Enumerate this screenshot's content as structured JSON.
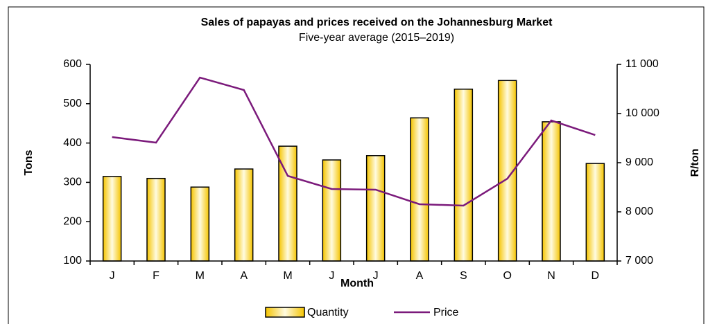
{
  "chart_data": {
    "type": "bar_line",
    "title": "Sales of papayas and prices received on the Johannesburg Market",
    "subtitle": "Five-year  average (2015–2019)",
    "x_label": "Month",
    "y_label": "Tons",
    "y2_label": "R/ton",
    "categories": [
      "J",
      "F",
      "M",
      "A",
      "M",
      "J",
      "J",
      "A",
      "S",
      "O",
      "N",
      "D"
    ],
    "series": [
      {
        "name": "Quantity",
        "type": "bar",
        "color": "#f5c400",
        "values": [
          315,
          310,
          288,
          334,
          392,
          357,
          368,
          464,
          537,
          559,
          454,
          348
        ]
      },
      {
        "name": "Price",
        "type": "line",
        "axis": "y2",
        "color": "#7b1a7b",
        "values": [
          9521,
          9408,
          10732,
          10479,
          8732,
          8465,
          8451,
          8155,
          8127,
          8676,
          9859,
          9563
        ]
      }
    ],
    "ylim": [
      100,
      600
    ],
    "yticks": [
      100,
      200,
      300,
      400,
      500,
      600
    ],
    "y2lim": [
      7000,
      11000
    ],
    "y2ticks": [
      {
        "value": 7000,
        "label": "7 000"
      },
      {
        "value": 8000,
        "label": "8 000"
      },
      {
        "value": 9000,
        "label": "9 000"
      },
      {
        "value": 10000,
        "label": "10 000"
      },
      {
        "value": 11000,
        "label": "11 000"
      }
    ],
    "legend": "bottom"
  }
}
